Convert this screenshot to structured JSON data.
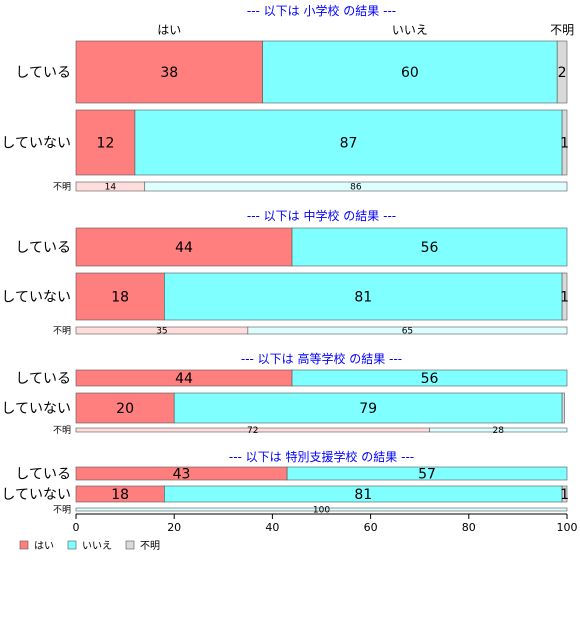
{
  "chart_data": {
    "type": "bar",
    "orientation": "horizontal",
    "stacked": "percent",
    "xlim": [
      0,
      100
    ],
    "x_ticks": [
      "0",
      "20",
      "40",
      "60",
      "80",
      "100"
    ],
    "column_headers": [
      "はい",
      "いいえ",
      "不明"
    ],
    "legend": {
      "placement": "bottom-left",
      "entries": [
        "はい",
        "いいえ",
        "不明"
      ]
    },
    "colors": {
      "はい": "#ff7f7f",
      "いいえ": "#7fffff",
      "不明": "#d9d9d9",
      "はい_faded": "#ffdddd",
      "いいえ_faded": "#ddffff",
      "title": "#0000ff"
    },
    "panels": [
      {
        "title": "--- 以下は 小学校 の結果 ---",
        "rows": [
          {
            "label": "している",
            "values": [
              38,
              60,
              2
            ],
            "labels": [
              "38",
              "60",
              "2"
            ]
          },
          {
            "label": "していない",
            "values": [
              12,
              87,
              1
            ],
            "labels": [
              "12",
              "87",
              "1"
            ]
          },
          {
            "label": "不明",
            "values": [
              14,
              86,
              0
            ],
            "labels": [
              "14",
              "86",
              ""
            ]
          }
        ]
      },
      {
        "title": "--- 以下は 中学校 の結果 ---",
        "rows": [
          {
            "label": "している",
            "values": [
              44,
              56,
              0
            ],
            "labels": [
              "44",
              "56",
              ""
            ]
          },
          {
            "label": "していない",
            "values": [
              18,
              81,
              1
            ],
            "labels": [
              "18",
              "81",
              "1"
            ]
          },
          {
            "label": "不明",
            "values": [
              35,
              65,
              0
            ],
            "labels": [
              "35",
              "65",
              ""
            ]
          }
        ]
      },
      {
        "title": "--- 以下は 高等学校 の結果 ---",
        "rows": [
          {
            "label": "している",
            "values": [
              44,
              56,
              0
            ],
            "labels": [
              "44",
              "56",
              ""
            ]
          },
          {
            "label": "していない",
            "values": [
              20,
              79,
              0.5
            ],
            "labels": [
              "20",
              "79",
              ""
            ]
          },
          {
            "label": "不明",
            "values": [
              72,
              28,
              0
            ],
            "labels": [
              "72",
              "28",
              ""
            ]
          }
        ]
      },
      {
        "title": "--- 以下は 特別支援学校 の結果 ---",
        "rows": [
          {
            "label": "している",
            "values": [
              43,
              57,
              0
            ],
            "labels": [
              "43",
              "57",
              ""
            ]
          },
          {
            "label": "していない",
            "values": [
              18,
              81,
              1
            ],
            "labels": [
              "18",
              "81",
              "1"
            ]
          },
          {
            "label": "不明",
            "values": [
              0,
              100,
              0
            ],
            "labels": [
              "",
              "100",
              ""
            ]
          }
        ]
      }
    ]
  }
}
